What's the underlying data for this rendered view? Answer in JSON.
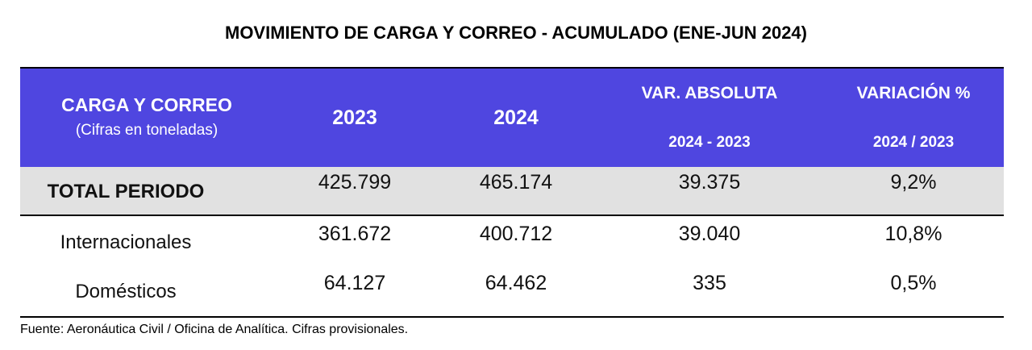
{
  "header": {
    "title": "MOVIMIENTO DE CARGA Y CORREO - ACUMULADO (ENE-JUN 2024)"
  },
  "table": {
    "columns": [
      {
        "label": "CARGA Y CORREO",
        "sublabel": "(Cifras en toneladas)"
      },
      {
        "label": "2023"
      },
      {
        "label": "2024"
      },
      {
        "label": "VAR. ABSOLUTA",
        "sublabel": "2024 - 2023"
      },
      {
        "label": "VARIACIÓN %",
        "sublabel": "2024 / 2023"
      }
    ],
    "rows": [
      [
        "TOTAL PERIODO",
        "425.799",
        "465.174",
        "39.375",
        "9,2%"
      ],
      [
        "Internacionales",
        "361.672",
        "400.712",
        "39.040",
        "10,8%"
      ],
      [
        "Domésticos",
        "64.127",
        "64.462",
        "335",
        "0,5%"
      ]
    ]
  },
  "footer": {
    "source": "Fuente: Aeronáutica Civil / Oficina de Analítica. Cifras provisionales."
  }
}
